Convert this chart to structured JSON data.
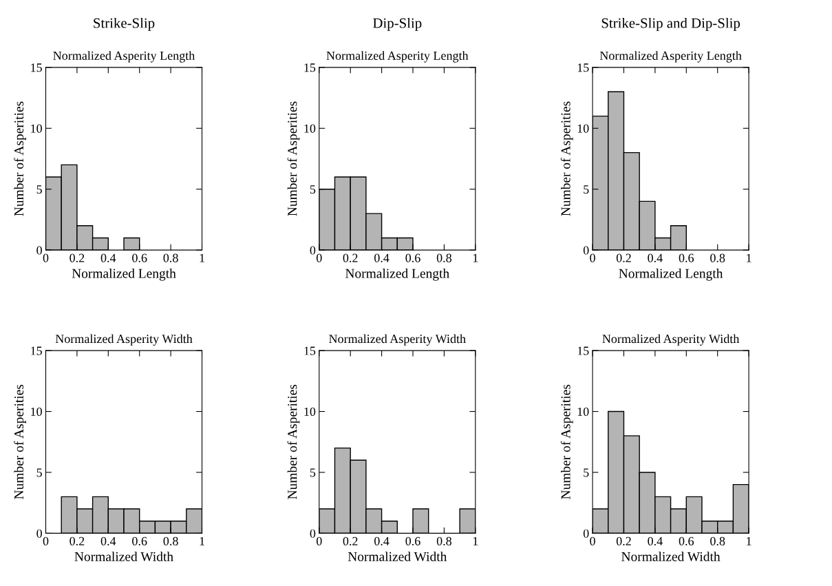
{
  "chart_data": [
    {
      "type": "histogram",
      "title": "Strike-Slip",
      "subtitle": "Normalized Asperity Length",
      "xlabel": "Normalized Length",
      "ylabel": "Number of Asperities",
      "bins": [
        0,
        0.1,
        0.2,
        0.3,
        0.4,
        0.5,
        0.6,
        0.7,
        0.8,
        0.9,
        1
      ],
      "values": [
        6,
        7,
        2,
        1,
        0,
        1,
        0,
        0,
        0,
        0
      ],
      "color": "#b4b4b4",
      "xlim": [
        0,
        1
      ],
      "ylim": [
        0,
        15
      ],
      "xticks": [
        0,
        0.2,
        0.4,
        0.6,
        0.8,
        1
      ],
      "yticks": [
        0,
        5,
        10,
        15
      ],
      "grid": false,
      "legend": false
    },
    {
      "type": "histogram",
      "title": "Dip-Slip",
      "subtitle": "Normalized Asperity Length",
      "xlabel": "Normalized Length",
      "ylabel": "Number of Asperities",
      "bins": [
        0,
        0.1,
        0.2,
        0.3,
        0.4,
        0.5,
        0.6,
        0.7,
        0.8,
        0.9,
        1
      ],
      "values": [
        5,
        6,
        6,
        3,
        1,
        1,
        0,
        0,
        0,
        0
      ],
      "color": "#b4b4b4",
      "xlim": [
        0,
        1
      ],
      "ylim": [
        0,
        15
      ],
      "xticks": [
        0,
        0.2,
        0.4,
        0.6,
        0.8,
        1
      ],
      "yticks": [
        0,
        5,
        10,
        15
      ],
      "grid": false,
      "legend": false
    },
    {
      "type": "histogram",
      "title": "Strike-Slip and Dip-Slip",
      "subtitle": "Normalized Asperity Length",
      "xlabel": "Normalized Length",
      "ylabel": "Number of Asperities",
      "bins": [
        0,
        0.1,
        0.2,
        0.3,
        0.4,
        0.5,
        0.6,
        0.7,
        0.8,
        0.9,
        1
      ],
      "values": [
        11,
        13,
        8,
        4,
        1,
        2,
        0,
        0,
        0,
        0
      ],
      "color": "#b4b4b4",
      "xlim": [
        0,
        1
      ],
      "ylim": [
        0,
        15
      ],
      "xticks": [
        0,
        0.2,
        0.4,
        0.6,
        0.8,
        1
      ],
      "yticks": [
        0,
        5,
        10,
        15
      ],
      "grid": false,
      "legend": false
    },
    {
      "type": "histogram",
      "title": "Normalized Asperity Width",
      "xlabel": "Normalized Width",
      "ylabel": "Number of Asperities",
      "bins": [
        0,
        0.1,
        0.2,
        0.3,
        0.4,
        0.5,
        0.6,
        0.7,
        0.8,
        0.9,
        1
      ],
      "values": [
        0,
        3,
        2,
        3,
        2,
        2,
        1,
        1,
        1,
        2
      ],
      "color": "#b4b4b4",
      "xlim": [
        0,
        1
      ],
      "ylim": [
        0,
        15
      ],
      "xticks": [
        0,
        0.2,
        0.4,
        0.6,
        0.8,
        1
      ],
      "yticks": [
        0,
        5,
        10,
        15
      ],
      "grid": false,
      "legend": false
    },
    {
      "type": "histogram",
      "title": "Normalized Asperity Width",
      "xlabel": "Normalized Width",
      "ylabel": "Number of Asperities",
      "bins": [
        0,
        0.1,
        0.2,
        0.3,
        0.4,
        0.5,
        0.6,
        0.7,
        0.8,
        0.9,
        1
      ],
      "values": [
        2,
        7,
        6,
        2,
        1,
        0,
        2,
        0,
        0,
        2
      ],
      "color": "#b4b4b4",
      "xlim": [
        0,
        1
      ],
      "ylim": [
        0,
        15
      ],
      "xticks": [
        0,
        0.2,
        0.4,
        0.6,
        0.8,
        1
      ],
      "yticks": [
        0,
        5,
        10,
        15
      ],
      "grid": false,
      "legend": false
    },
    {
      "type": "histogram",
      "title": "Normalized Asperity Width",
      "xlabel": "Normalized Width",
      "ylabel": "Number of Asperities",
      "bins": [
        0,
        0.1,
        0.2,
        0.3,
        0.4,
        0.5,
        0.6,
        0.7,
        0.8,
        0.9,
        1
      ],
      "values": [
        2,
        10,
        8,
        5,
        3,
        2,
        3,
        1,
        1,
        4
      ],
      "color": "#b4b4b4",
      "xlim": [
        0,
        1
      ],
      "ylim": [
        0,
        15
      ],
      "xticks": [
        0,
        0.2,
        0.4,
        0.6,
        0.8,
        1
      ],
      "yticks": [
        0,
        5,
        10,
        15
      ],
      "grid": false,
      "legend": false
    }
  ]
}
